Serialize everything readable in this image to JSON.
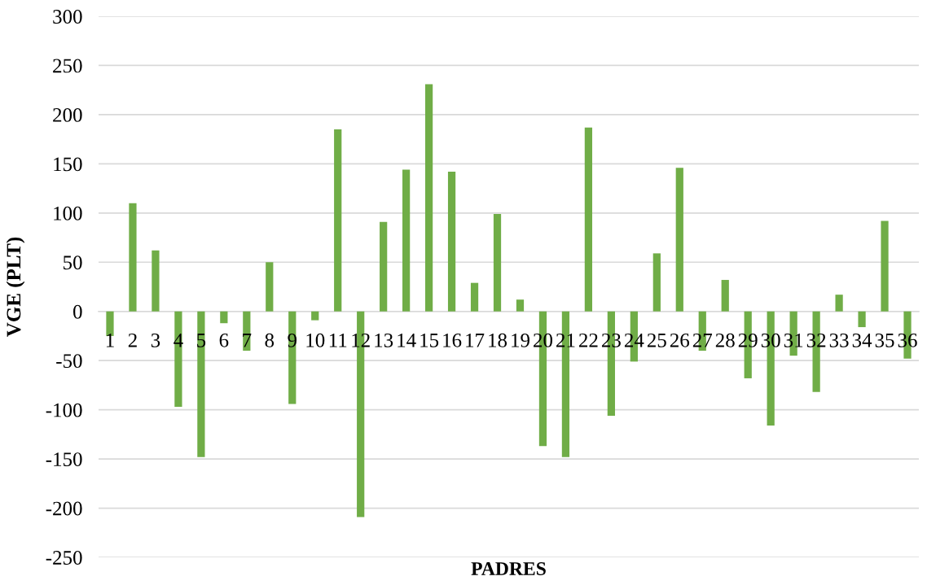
{
  "chart_data": {
    "type": "bar",
    "xlabel": "PADRES",
    "ylabel": "VGE (PLT)",
    "categories": [
      "1",
      "2",
      "3",
      "4",
      "5",
      "6",
      "7",
      "8",
      "9",
      "10",
      "11",
      "12",
      "13",
      "14",
      "15",
      "16",
      "17",
      "18",
      "19",
      "20",
      "21",
      "22",
      "23",
      "24",
      "25",
      "26",
      "27",
      "28",
      "29",
      "30",
      "31",
      "32",
      "33",
      "34",
      "35",
      "36"
    ],
    "values": [
      -25,
      110,
      62,
      -97,
      -148,
      -12,
      -40,
      50,
      -94,
      -9,
      185,
      -209,
      91,
      144,
      231,
      142,
      29,
      99,
      12,
      -137,
      -148,
      187,
      -106,
      -51,
      59,
      146,
      -40,
      32,
      -68,
      -116,
      -45,
      -82,
      17,
      -16,
      92,
      -48
    ],
    "color": "#70ad47",
    "ylim": [
      -250,
      300
    ],
    "yticks": [
      -250,
      -200,
      -150,
      -100,
      -50,
      0,
      50,
      100,
      150,
      200,
      250,
      300
    ],
    "grid": "y"
  }
}
